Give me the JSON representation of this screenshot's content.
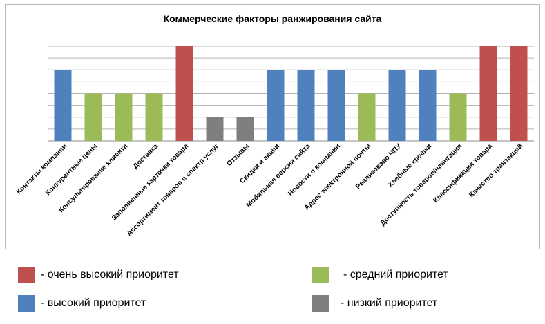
{
  "chart_data": {
    "type": "bar",
    "title": "Коммерческие факторы ранжирования сайта",
    "categories": [
      "Контакты компании",
      "Конкурентные цены",
      "Консультирование клиента",
      "Доставка",
      "Заполненные карточки товара",
      "Ассортимент товаров и спектр  услуг",
      "Отзывы",
      "Скидки и акции",
      "Мобильная версия сайта",
      "Новости о компании",
      "Адрес электронной почты",
      "Реализовано ЧПУ",
      "Хлебные крошки",
      "Доступность товаров/навигация",
      "Классификация товара",
      "Качество транзакций"
    ],
    "values": [
      6,
      4,
      4,
      4,
      8,
      2,
      2,
      6,
      6,
      6,
      4,
      6,
      6,
      4,
      8,
      8
    ],
    "priority": [
      "high",
      "medium",
      "medium",
      "medium",
      "very_high",
      "low",
      "low",
      "high",
      "high",
      "high",
      "medium",
      "high",
      "high",
      "medium",
      "very_high",
      "very_high"
    ],
    "ylim": [
      0,
      8
    ],
    "grid": true,
    "colors": {
      "very_high": "#c0504d",
      "high": "#4f81bd",
      "medium": "#9bbb59",
      "low": "#7f7f7f"
    }
  },
  "legend": {
    "very_high": "- очень высокий приоритет",
    "high": "- высокий приоритет",
    "medium": "- средний приоритет",
    "low": "- низкий приоритет"
  }
}
